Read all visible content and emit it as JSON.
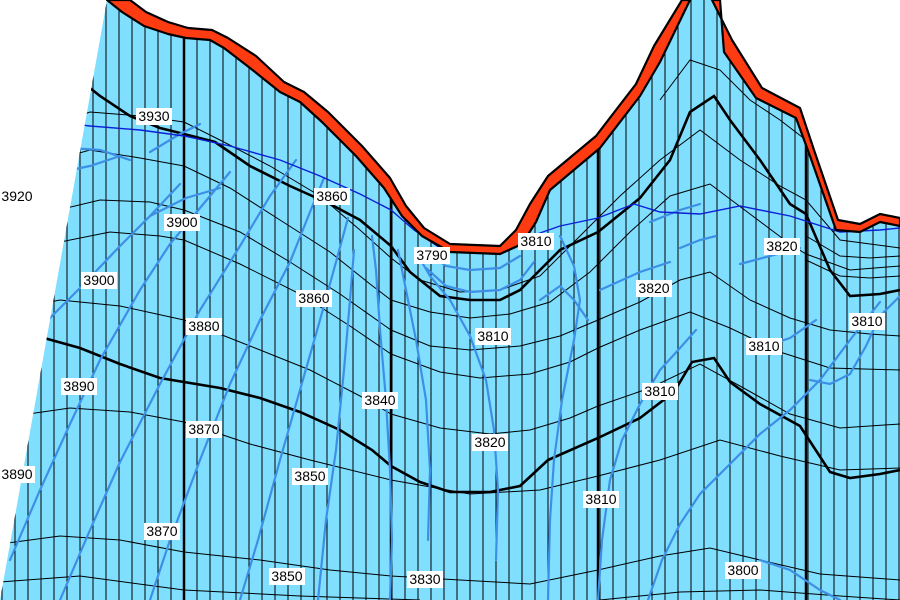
{
  "colors": {
    "fill": "#80dfff",
    "grid_thin": "#000000",
    "contour_thin": "#000000",
    "contour_index": "#000000",
    "flow_line": "#3d8fe6",
    "water_table": "#0a1fd6",
    "surface_band": "#ff3b12",
    "sky": "#ffffff"
  },
  "labels": [
    {
      "text": "3930"
    },
    {
      "text": "3920"
    },
    {
      "text": "3900"
    },
    {
      "text": "3900"
    },
    {
      "text": "3860"
    },
    {
      "text": "3860"
    },
    {
      "text": "3880"
    },
    {
      "text": "3890"
    },
    {
      "text": "3870"
    },
    {
      "text": "3890"
    },
    {
      "text": "3870"
    },
    {
      "text": "3850"
    },
    {
      "text": "3850"
    },
    {
      "text": "3840"
    },
    {
      "text": "3830"
    },
    {
      "text": "3790"
    },
    {
      "text": "3810"
    },
    {
      "text": "3810"
    },
    {
      "text": "3820"
    },
    {
      "text": "3820"
    },
    {
      "text": "3820"
    },
    {
      "text": "3810"
    },
    {
      "text": "3810"
    },
    {
      "text": "3810"
    },
    {
      "text": "3810"
    },
    {
      "text": "3800"
    }
  ]
}
